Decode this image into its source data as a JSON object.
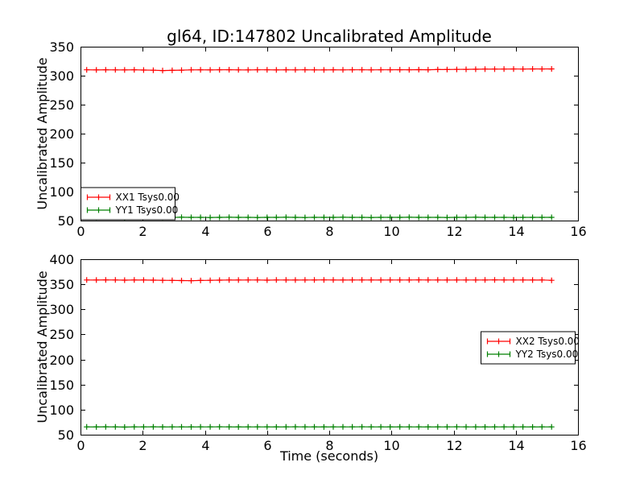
{
  "figure": {
    "title": "gl64, ID:147802 Uncalibrated Amplitude",
    "background": "#ffffff",
    "text_color": "#000000",
    "frame_color": "#000000"
  },
  "chart_data": [
    {
      "type": "line",
      "subplot": "top",
      "title": "",
      "xlabel": "",
      "ylabel": "Uncalibrated Amplitude",
      "xlim": [
        0,
        16
      ],
      "ylim": [
        50,
        350
      ],
      "xticks": [
        0,
        2,
        4,
        6,
        8,
        10,
        12,
        14,
        16
      ],
      "yticks": [
        50,
        100,
        150,
        200,
        250,
        300,
        350
      ],
      "grid": false,
      "legend_position": "lower left",
      "x": [
        0.2,
        0.51,
        0.81,
        1.12,
        1.42,
        1.73,
        2.03,
        2.34,
        2.64,
        2.95,
        3.25,
        3.56,
        3.86,
        4.17,
        4.47,
        4.78,
        5.08,
        5.39,
        5.69,
        6.0,
        6.3,
        6.61,
        6.91,
        7.22,
        7.52,
        7.83,
        8.13,
        8.44,
        8.74,
        9.05,
        9.35,
        9.66,
        9.96,
        10.27,
        10.57,
        10.88,
        11.18,
        11.49,
        11.79,
        12.1,
        12.4,
        12.71,
        13.01,
        13.32,
        13.62,
        13.93,
        14.23,
        14.54,
        14.84,
        15.15
      ],
      "series": [
        {
          "name": "XX1 Tsys0.00",
          "color": "#ff0000",
          "marker": "plus",
          "values": [
            310.1,
            309.9,
            310.2,
            310.0,
            309.8,
            310.1,
            309.7,
            309.4,
            308.9,
            309.2,
            309.6,
            310.0,
            310.2,
            309.9,
            310.1,
            310.3,
            310.0,
            309.8,
            310.1,
            310.2,
            309.9,
            310.1,
            310.0,
            310.2,
            310.0,
            309.9,
            310.1,
            310.0,
            310.2,
            310.1,
            310.0,
            310.2,
            310.1,
            310.3,
            310.2,
            310.4,
            310.3,
            310.5,
            310.6,
            310.8,
            311.0,
            311.1,
            311.3,
            311.2,
            311.4,
            311.5,
            311.4,
            311.6,
            311.5,
            311.6
          ]
        },
        {
          "name": "YY1 Tsys0.00",
          "color": "#008000",
          "marker": "plus",
          "values": [
            55.6,
            55.4,
            55.7,
            55.5,
            55.3,
            55.6,
            55.8,
            55.5,
            55.4,
            55.6,
            55.7,
            55.5,
            55.6,
            55.4,
            55.5,
            55.7,
            55.6,
            55.5,
            55.4,
            55.6,
            55.5,
            55.7,
            55.6,
            55.4,
            55.5,
            55.6,
            55.5,
            55.7,
            55.5,
            55.6,
            55.4,
            55.5,
            55.6,
            55.5,
            55.7,
            55.6,
            55.5,
            55.6,
            55.4,
            55.5,
            55.6,
            55.7,
            55.5,
            55.6,
            55.5,
            55.4,
            55.6,
            55.5,
            55.6,
            55.5
          ]
        }
      ]
    },
    {
      "type": "line",
      "subplot": "bottom",
      "title": "",
      "xlabel": "Time (seconds)",
      "ylabel": "Uncalibrated Amplitude",
      "xlim": [
        0,
        16
      ],
      "ylim": [
        50,
        400
      ],
      "xticks": [
        0,
        2,
        4,
        6,
        8,
        10,
        12,
        14,
        16
      ],
      "yticks": [
        50,
        100,
        150,
        200,
        250,
        300,
        350,
        400
      ],
      "grid": false,
      "legend_position": "center right",
      "x": [
        0.2,
        0.51,
        0.81,
        1.12,
        1.42,
        1.73,
        2.03,
        2.34,
        2.64,
        2.95,
        3.25,
        3.56,
        3.86,
        4.17,
        4.47,
        4.78,
        5.08,
        5.39,
        5.69,
        6.0,
        6.3,
        6.61,
        6.91,
        7.22,
        7.52,
        7.83,
        8.13,
        8.44,
        8.74,
        9.05,
        9.35,
        9.66,
        9.96,
        10.27,
        10.57,
        10.88,
        11.18,
        11.49,
        11.79,
        12.1,
        12.4,
        12.71,
        13.01,
        13.32,
        13.62,
        13.93,
        14.23,
        14.54,
        14.84,
        15.15
      ],
      "series": [
        {
          "name": "XX2 Tsys0.00",
          "color": "#ff0000",
          "marker": "plus",
          "values": [
            358.6,
            358.4,
            358.7,
            358.5,
            358.3,
            358.6,
            358.4,
            358.2,
            358.0,
            357.8,
            357.5,
            357.2,
            357.6,
            358.0,
            358.3,
            358.5,
            358.4,
            358.6,
            358.5,
            358.3,
            358.6,
            358.5,
            358.4,
            358.6,
            358.5,
            358.7,
            358.5,
            358.4,
            358.6,
            358.5,
            358.6,
            358.4,
            358.5,
            358.6,
            358.5,
            358.7,
            358.6,
            358.5,
            358.4,
            358.6,
            358.5,
            358.6,
            358.5,
            358.7,
            358.6,
            358.5,
            358.6,
            358.4,
            358.5,
            357.9
          ]
        },
        {
          "name": "YY2 Tsys0.00",
          "color": "#008000",
          "marker": "plus",
          "values": [
            65.6,
            65.4,
            65.7,
            65.5,
            65.3,
            65.6,
            65.5,
            65.7,
            65.4,
            65.6,
            65.5,
            65.4,
            65.6,
            65.5,
            65.7,
            65.5,
            65.4,
            65.6,
            65.5,
            65.6,
            65.4,
            65.5,
            65.7,
            65.5,
            65.6,
            65.4,
            65.5,
            65.6,
            65.5,
            65.7,
            65.5,
            65.6,
            65.4,
            65.5,
            65.6,
            65.5,
            65.4,
            65.6,
            65.5,
            65.7,
            65.6,
            65.5,
            65.4,
            65.6,
            65.5,
            65.6,
            65.5,
            65.4,
            65.6,
            65.5
          ]
        }
      ]
    }
  ]
}
